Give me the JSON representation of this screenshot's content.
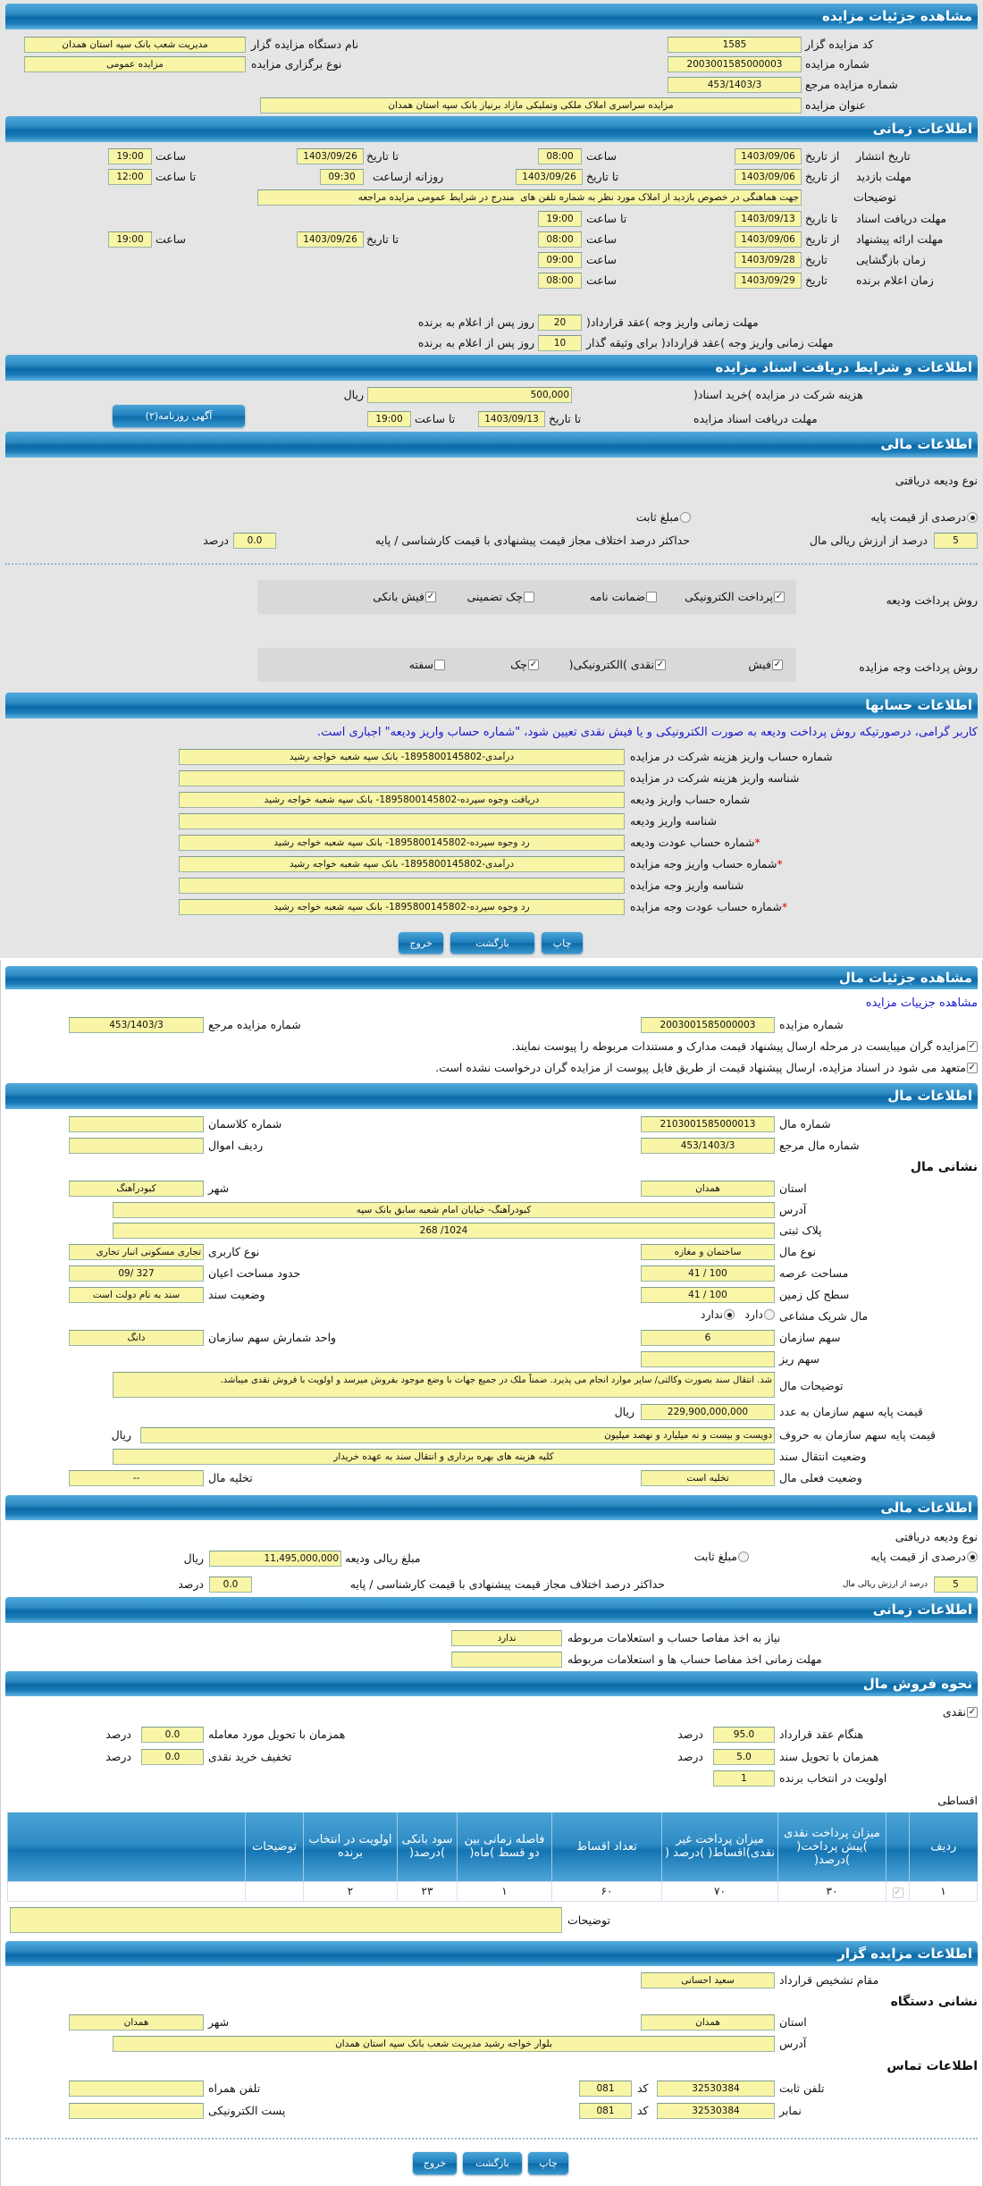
{
  "auction": {
    "header": "مشاهده جزئیات مزایده",
    "org_code_label": "کد مزایده گزار",
    "org_code": "1585",
    "number_label": "شماره مزایده",
    "number": "2003001585000003",
    "ref_label": "شماره مزایده مرجع",
    "ref": "453/1403/3",
    "title_label": "عنوان مزایده",
    "title": "مزایده سراسری املاک ملکی وتملیکی مازاد برنیاز بانک سپه استان همدان",
    "org_name_label": "نام دستگاه مزایده گزار",
    "org_name": "مدیریت شعب بانک سپه استان همدان",
    "type_label": "نوع برگزاری مزایده",
    "type": "مزایده عمومی"
  },
  "timing": {
    "header": "اطلاعات زمانی",
    "from_date": "از تاریخ",
    "to_date": "تا تاریخ",
    "date": "تاریخ",
    "hour": "ساعت",
    "to_hour": "تا ساعت",
    "daily_from": "روزانه ازساعت",
    "publish_label": "تاریخ انتشار",
    "publish_from": "1403/09/06",
    "publish_from_time": "08:00",
    "publish_to": "1403/09/26",
    "publish_to_time": "19:00",
    "visit_label": "مهلت بازدید",
    "visit_from": "1403/09/06",
    "visit_to": "1403/09/26",
    "visit_daily_from": "09:30",
    "visit_to_time": "12:00",
    "desc_label": "توضیحات",
    "desc": "جهت هماهنگی در خصوص بازدید از املاک مورد نظر به شماره تلفن های  مندرج در شرایط عمومی مزایده مراجعه",
    "docs_label": "مهلت دریافت اسناد",
    "docs_to": "1403/09/13",
    "docs_to_time": "19:00",
    "offer_label": "مهلت ارائه پیشنهاد",
    "offer_from": "1403/09/06",
    "offer_from_time": "08:00",
    "offer_to": "1403/09/26",
    "offer_to_time": "19:00",
    "opening_label": "زمان بازگشایی",
    "opening_date": "1403/09/28",
    "opening_time": "09:00",
    "winner_label": "زمان اعلام برنده",
    "winner_date": "1403/09/29",
    "winner_time": "08:00",
    "pay_label": "مهلت زمانی واریز وجه )عقد قرارداد(",
    "pay_days": "20",
    "days_after": "روز پس از اعلام به برنده",
    "pay_collateral_label": "مهلت زمانی واریز وجه )عقد قرارداد( برای وثیقه گذار",
    "pay_collateral_days": "10"
  },
  "docs": {
    "header": "اطلاعات و شرایط دریافت اسناد مزایده",
    "fee_label": "هزینه شرکت در مزایده )خرید اسناد(",
    "fee": "500,000",
    "rial": "ریال",
    "deadline_label": "مهلت دریافت اسناد مزایده",
    "to_date": "تا تاریخ",
    "date": "1403/09/13",
    "to_hour": "تا ساعت",
    "time": "19:00",
    "ad_button": "آگهی روزنامه(۲)"
  },
  "finance": {
    "header": "اطلاعات مالی",
    "deposit_type_label": "نوع ودیعه دریافتی",
    "opt_percent": "درصدی از قیمت پایه",
    "opt_fixed": "مبلغ ثابت",
    "selected": "درصدی از قیمت پایه",
    "percent": "5",
    "percent_text": "درصد از ارزش ریالی مال",
    "max_diff_label": "حداکثر درصد اختلاف مجاز قیمت پیشنهادی با قیمت کارشناسی / پایه",
    "max_diff": "0.0",
    "percent_unit": "درصد",
    "deposit_method_label": "روش پرداخت ودیعه",
    "deposit_methods": [
      {
        "label": "پرداخت الکترونیکی",
        "checked": true
      },
      {
        "label": "ضمانت نامه",
        "checked": false
      },
      {
        "label": "چک تضمینی",
        "checked": false
      },
      {
        "label": "فیش بانکی",
        "checked": true
      }
    ],
    "payment_method_label": "روش پرداخت وجه مزایده",
    "payment_methods": [
      {
        "label": "فیش",
        "checked": true
      },
      {
        "label": "نقدی )الکترونیکی(",
        "checked": true
      },
      {
        "label": "چک",
        "checked": true
      },
      {
        "label": "سفته",
        "checked": false
      }
    ]
  },
  "accounts": {
    "header": "اطلاعات حسابها",
    "note": "کاربر گرامی، درصورتیکه روش پرداخت ودیعه به صورت الکترونیکی و یا فیش نقدی تعیین شود، \"شماره حساب واریز ودیعه\" اجباری است.",
    "rows": [
      {
        "label": "شماره حساب واریز هزینه شرکت در مزایده",
        "value": "درآمدی-1895800145802- بانک سپه شعبه خواجه رشید"
      },
      {
        "label": "شناسه واریز هزینه شرکت در مزایده",
        "value": ""
      },
      {
        "label": "شماره حساب واریز ودیعه",
        "value": "دریافت وجوه سپرده-1895800145802- بانک سپه شعبه خواجه رشید"
      },
      {
        "label": "شناسه واریز ودیعه",
        "value": ""
      },
      {
        "label": "شماره حساب عودت ودیعه",
        "value": "رد وجوه سپرده-1895800145802- بانک سپه شعبه خواجه رشید",
        "required": true
      },
      {
        "label": "شماره حساب واریز وجه مزایده",
        "value": "درآمدی-1895800145802- بانک سپه شعبه خواجه رشید",
        "required": true
      },
      {
        "label": "شناسه واریز وجه مزایده",
        "value": ""
      },
      {
        "label": "شماره حساب عودت وجه مزایده",
        "value": "رد وجوه سپرده-1895800145802- بانک سپه شعبه خواجه رشید",
        "required": true
      }
    ],
    "required_mark": "*"
  },
  "buttons": {
    "print": "چاپ",
    "back": "بازگشت",
    "exit": "خروج"
  },
  "item": {
    "header": "مشاهده جزئیات مال",
    "link": "مشاهده جزییات مزایده",
    "auction_number_label": "شماره مزایده",
    "auction_number": "2003001585000003",
    "auction_ref_label": "شماره مزایده مرجع",
    "auction_ref": "453/1403/3",
    "check1": "مزایده گران میبایست در مرحله ارسال پیشنهاد قیمت مدارک و مستندات مربوطه را پیوست نمایند.",
    "check2": "متعهد می شود در اسناد مزایده، ارسال پیشنهاد قیمت از طریق فایل پیوست از مزایده گران درخواست نشده است."
  },
  "property": {
    "header": "اطلاعات مال",
    "number_label": "شماره مال",
    "number": "2103001585000013",
    "class_label": "شماره کلاسمان",
    "class": "",
    "ref_label": "شماره مال مرجع",
    "ref": "453/1403/3",
    "row_label": "ردیف اموال",
    "row": "",
    "address_title": "نشانی مال",
    "province_label": "استان",
    "province": "همدان",
    "city_label": "شهر",
    "city": "کبودرآهنگ",
    "address_label": "آدرس",
    "address": "کبودرآهنگ- خیابان امام شعبه سابق بانک سپه",
    "plaque_label": "پلاک ثبتی",
    "plaque": "1024/ 268",
    "type_label": "نوع مال",
    "type": "ساختمان و مغازه",
    "usage_label": "نوع کاربری",
    "usage": "تجاری مسکونی انبار تجاری",
    "land_area_label": "مساحت عرصه",
    "land_area": "100 / 41",
    "building_area_label": "حدود مساحت اعیان",
    "building_area": "327 /09",
    "total_land_label": "سطح کل زمین",
    "total_land": "100 / 41",
    "deed_label": "وضعیت سند",
    "deed": "سند به نام دولت است",
    "shared_label": "مال شریک مشاعی",
    "shared_yes": "دارد",
    "shared_no": "ندارد",
    "shared": "ندارد",
    "share_label": "سهم سازمان",
    "share": "6",
    "share_unit_label": "واحد شمارش سهم سازمان",
    "share_unit": "دانگ",
    "sub_share_label": "سهم ریز",
    "sub_share": "",
    "desc_label": "توضیحات مال",
    "desc": "شد. انتقال سند بصورت وکالتی/ سایر موارد انجام می پذیرد. ضمناً ملک در جمیع جهات با وضع موجود بفروش میرسد و اولویت با فروش نقدی میباشد.",
    "price_num_label": "قیمت پایه سهم سازمان به عدد",
    "price_num": "229,900,000,000",
    "price_text_label": "قیمت پایه سهم سازمان به حروف",
    "price_text": "دویست و بیست و نه میلیارد و نهصد میلیون",
    "rial": "ریال",
    "transfer_label": "وضعیت انتقال سند",
    "transfer": "کلیه هزینه های بهره برداری و انتقال سند به عهده خریدار",
    "status_label": "وضعیت فعلی مال",
    "status": "تخلیه است",
    "evac_label": "تخلیه مال",
    "evac": "--"
  },
  "finance2": {
    "header": "اطلاعات مالی",
    "deposit_type_label": "نوع ودیعه دریافتی",
    "opt_percent": "درصدی از قیمت پایه",
    "opt_fixed": "مبلغ ثابت",
    "selected": "درصدی از قیمت پایه",
    "amount_label": "مبلغ ریالی ودیعه",
    "amount": "11,495,000,000",
    "rial": "ریال",
    "percent": "5",
    "percent_text": "درصد از ارزش ریالی مال",
    "max_diff_label": "حداکثر درصد اختلاف مجاز قیمت پیشنهادی با قیمت کارشناسی / پایه",
    "max_diff": "0.0",
    "percent_unit": "درصد"
  },
  "timing2": {
    "header": "اطلاعات زمانی",
    "clearance_label": "نیاز به اخذ مفاصا حساب و استعلامات مربوطه",
    "clearance": "ندارد",
    "clearance_deadline_label": "مهلت زمانی اخذ مفاصا حساب ها و استعلامات مربوطه",
    "clearance_deadline": ""
  },
  "sale": {
    "header": "نحوه فروش مال",
    "cash_label": "نقدی",
    "cash_checked": true,
    "percent_unit": "درصد",
    "contract_label": "هنگام عقد قرارداد",
    "contract": "95.0",
    "deed_label": "همزمان با تحویل سند",
    "deed": "5.0",
    "priority_label": "اولویت در انتخاب برنده",
    "priority": "1",
    "delivery_label": "همزمان با تحویل مورد معامله",
    "delivery": "0.0",
    "discount_label": "تخفیف خرید نقدی",
    "discount": "0.0",
    "installment_label": "اقساطی",
    "table": {
      "headers": [
        "ردیف",
        "",
        "میزان پرداخت نقدی )پیش پرداخت( )درصد(",
        "میزان پرداخت غیر نقدی)اقساط( )درصد (",
        "تعداد اقساط",
        "فاصله زمانی بین دو قسط )ماه(",
        "سود بانکی )درصد(",
        "اولویت در انتخاب برنده",
        "توضیحات",
        ""
      ],
      "rows": [
        [
          "١",
          "",
          "۳۰",
          "۷۰",
          "۶۰",
          "١",
          "۲۳",
          "۲",
          "",
          ""
        ]
      ]
    },
    "desc_label": "توضیحات",
    "desc": ""
  },
  "organizer": {
    "header": "اطلاعات مزایده گزار",
    "authority_label": "مقام تشخیص قرارداد",
    "authority": "سعید احسانی",
    "address_title": "نشانی دستگاه",
    "province_label": "استان",
    "province": "همدان",
    "city_label": "شهر",
    "city": "همدان",
    "address_label": "آدرس",
    "address": "بلوار خواجه رشید مدیریت شعب بانک سپه استان همدان",
    "contact_title": "اطلاعات تماس",
    "phone_label": "تلفن ثابت",
    "phone": "32530384",
    "code_label": "کد",
    "phone_code": "081",
    "fax_label": "نمابر",
    "fax": "32530384",
    "fax_code": "081",
    "mobile_label": "تلفن همراه",
    "mobile": "",
    "email_label": "پست الکترونیکی",
    "email": ""
  },
  "colors": {
    "header_blue": "#0b69a7",
    "field_yellow": "#f8f5a6",
    "panel_grey": "#e5e5e5",
    "link_blue": "#1a1acc"
  }
}
